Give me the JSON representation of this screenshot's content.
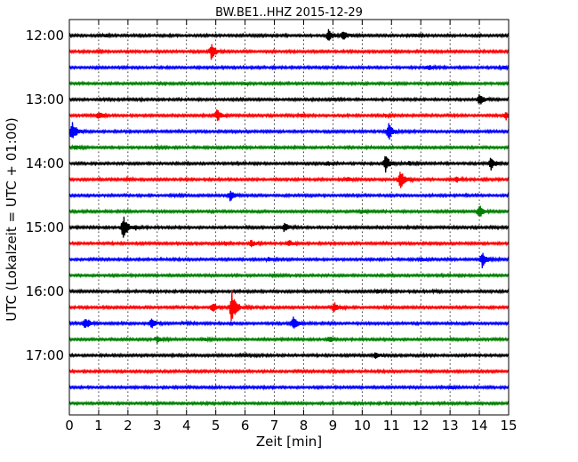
{
  "chart_data": {
    "type": "line",
    "title": "BW.BE1..HHZ 2015-12-29",
    "xlabel": "Zeit  [min]",
    "ylabel": "UTC (Lokalzeit = UTC + 01:00)",
    "xlim": [
      0,
      15
    ],
    "x_ticks": [
      "0",
      "1",
      "2",
      "3",
      "4",
      "5",
      "6",
      "7",
      "8",
      "9",
      "10",
      "11",
      "12",
      "13",
      "14",
      "15"
    ],
    "y_tick_labels": [
      "12:00",
      "13:00",
      "14:00",
      "15:00",
      "16:00",
      "17:00"
    ],
    "grid": "vertical dotted",
    "trace_interval_min": 15,
    "trace_colors": [
      "#000000",
      "#ff0000",
      "#0000ff",
      "#008000"
    ],
    "traces": [
      {
        "start": "12:00",
        "events": [
          {
            "t": 8.85,
            "amp": 0.45
          },
          {
            "t": 9.35,
            "amp": 0.4
          },
          {
            "t": 1.2,
            "amp": 0.08
          },
          {
            "t": 11.8,
            "amp": 0.1
          }
        ]
      },
      {
        "start": "12:15",
        "events": [
          {
            "t": 4.85,
            "amp": 0.55
          },
          {
            "t": 1.0,
            "amp": 0.05
          }
        ]
      },
      {
        "start": "12:30",
        "events": [
          {
            "t": 12.25,
            "amp": 0.18
          },
          {
            "t": 14.8,
            "amp": 0.1
          }
        ]
      },
      {
        "start": "12:45",
        "events": [
          {
            "t": 6.0,
            "amp": 0.05
          },
          {
            "t": 13.0,
            "amp": 0.06
          }
        ]
      },
      {
        "start": "13:00",
        "events": [
          {
            "t": 14.0,
            "amp": 0.42
          },
          {
            "t": 9.0,
            "amp": 0.08
          }
        ]
      },
      {
        "start": "13:15",
        "events": [
          {
            "t": 5.05,
            "amp": 0.42
          },
          {
            "t": 1.0,
            "amp": 0.28
          },
          {
            "t": 7.9,
            "amp": 0.1
          },
          {
            "t": 14.9,
            "amp": 0.3
          },
          {
            "t": 10.8,
            "amp": 0.08
          }
        ]
      },
      {
        "start": "13:30",
        "events": [
          {
            "t": 0.1,
            "amp": 0.75
          },
          {
            "t": 10.9,
            "amp": 0.68
          }
        ]
      },
      {
        "start": "13:45",
        "events": [
          {
            "t": 0.2,
            "amp": 0.15
          },
          {
            "t": 3.0,
            "amp": 0.05
          }
        ]
      },
      {
        "start": "14:00",
        "events": [
          {
            "t": 10.8,
            "amp": 0.6
          },
          {
            "t": 14.4,
            "amp": 0.45
          },
          {
            "t": 8.8,
            "amp": 0.15
          },
          {
            "t": 11.6,
            "amp": 0.12
          }
        ]
      },
      {
        "start": "14:15",
        "events": [
          {
            "t": 11.3,
            "amp": 0.72
          },
          {
            "t": 9.5,
            "amp": 0.15
          },
          {
            "t": 13.2,
            "amp": 0.2
          },
          {
            "t": 2.0,
            "amp": 0.06
          }
        ]
      },
      {
        "start": "14:30",
        "events": [
          {
            "t": 5.5,
            "amp": 0.42
          },
          {
            "t": 3.5,
            "amp": 0.06
          }
        ]
      },
      {
        "start": "14:45",
        "events": [
          {
            "t": 14.0,
            "amp": 0.5
          },
          {
            "t": 10.0,
            "amp": 0.1
          }
        ]
      },
      {
        "start": "15:00",
        "events": [
          {
            "t": 1.85,
            "amp": 0.9
          },
          {
            "t": 7.35,
            "amp": 0.35
          },
          {
            "t": 2.25,
            "amp": 0.15
          }
        ]
      },
      {
        "start": "15:15",
        "events": [
          {
            "t": 6.2,
            "amp": 0.25
          },
          {
            "t": 7.5,
            "amp": 0.22
          },
          {
            "t": 5.3,
            "amp": 0.12
          }
        ]
      },
      {
        "start": "15:30",
        "events": [
          {
            "t": 14.1,
            "amp": 0.55
          },
          {
            "t": 6.8,
            "amp": 0.12
          },
          {
            "t": 12.0,
            "amp": 0.12
          }
        ]
      },
      {
        "start": "15:45",
        "events": [
          {
            "t": 7.0,
            "amp": 0.04
          }
        ]
      },
      {
        "start": "16:00",
        "events": [
          {
            "t": 10.5,
            "amp": 0.15
          },
          {
            "t": 12.5,
            "amp": 0.05
          }
        ]
      },
      {
        "start": "16:15",
        "events": [
          {
            "t": 5.55,
            "amp": 1.2
          },
          {
            "t": 9.05,
            "amp": 0.35
          },
          {
            "t": 4.9,
            "amp": 0.3
          }
        ]
      },
      {
        "start": "16:30",
        "events": [
          {
            "t": 0.55,
            "amp": 0.45
          },
          {
            "t": 2.8,
            "amp": 0.35
          },
          {
            "t": 7.65,
            "amp": 0.5
          },
          {
            "t": 3.9,
            "amp": 0.1
          }
        ]
      },
      {
        "start": "16:45",
        "events": [
          {
            "t": 3.0,
            "amp": 0.25
          },
          {
            "t": 8.9,
            "amp": 0.22
          },
          {
            "t": 4.6,
            "amp": 0.08
          }
        ]
      },
      {
        "start": "17:00",
        "events": [
          {
            "t": 10.45,
            "amp": 0.25
          },
          {
            "t": 6.0,
            "amp": 0.05
          }
        ]
      },
      {
        "start": "17:15",
        "events": [
          {
            "t": 9.0,
            "amp": 0.04
          }
        ]
      },
      {
        "start": "17:30",
        "events": [
          {
            "t": 13.0,
            "amp": 0.1
          }
        ]
      },
      {
        "start": "17:45",
        "events": []
      }
    ]
  }
}
